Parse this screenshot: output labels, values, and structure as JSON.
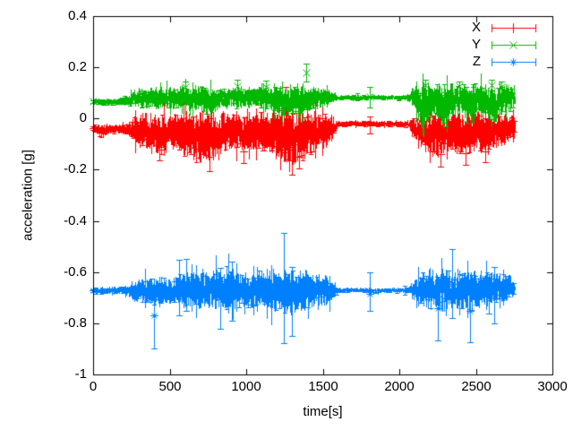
{
  "chart_data": {
    "type": "line",
    "style": "errorbars",
    "title": "",
    "xlabel": "time[s]",
    "ylabel": "acceleration [g]",
    "xlim": [
      0,
      3000
    ],
    "ylim": [
      -1,
      0.4
    ],
    "grid": false,
    "background": "#ffffff",
    "axis_color": "#000000",
    "xticks": [
      0,
      500,
      1000,
      1500,
      2000,
      2500,
      3000
    ],
    "xtick_labels": [
      "0",
      "500",
      "1000",
      "1500",
      "2000",
      "2500",
      "3000"
    ],
    "yticks": [
      0.4,
      0.2,
      0,
      -0.2,
      -0.4,
      -0.6,
      -0.8,
      -1
    ],
    "ytick_labels": [
      "0.4",
      "0.2",
      "0",
      "-0.2",
      "-0.4",
      "-0.6",
      "-0.8",
      "-1"
    ],
    "legend": {
      "position": "top-right"
    },
    "t_range": [
      0,
      2754
    ],
    "series": [
      {
        "name": "X",
        "color": "#ff0000",
        "marker": "plus",
        "envelope": [
          [
            0,
            -0.038,
            0.01
          ],
          [
            60,
            -0.048,
            0.018
          ],
          [
            120,
            -0.041,
            0.011
          ],
          [
            180,
            -0.04,
            0.012
          ],
          [
            225,
            -0.042,
            0.016
          ],
          [
            265,
            -0.05,
            0.034
          ],
          [
            320,
            -0.048,
            0.044
          ],
          [
            380,
            -0.055,
            0.05
          ],
          [
            440,
            -0.06,
            0.054
          ],
          [
            500,
            -0.05,
            0.045
          ],
          [
            560,
            -0.055,
            0.05
          ],
          [
            620,
            -0.065,
            0.058
          ],
          [
            680,
            -0.07,
            0.064
          ],
          [
            740,
            -0.075,
            0.068
          ],
          [
            800,
            -0.07,
            0.064
          ],
          [
            860,
            -0.055,
            0.05
          ],
          [
            920,
            -0.05,
            0.045
          ],
          [
            980,
            -0.055,
            0.05
          ],
          [
            1040,
            -0.05,
            0.047
          ],
          [
            1100,
            -0.055,
            0.052
          ],
          [
            1160,
            -0.06,
            0.057
          ],
          [
            1220,
            -0.07,
            0.068
          ],
          [
            1280,
            -0.075,
            0.074
          ],
          [
            1340,
            -0.07,
            0.068
          ],
          [
            1400,
            -0.06,
            0.056
          ],
          [
            1460,
            -0.05,
            0.047
          ],
          [
            1520,
            -0.047,
            0.043
          ],
          [
            1565,
            -0.038,
            0.026
          ],
          [
            1600,
            -0.022,
            0.008
          ],
          [
            1700,
            -0.02,
            0.007
          ],
          [
            1810,
            -0.021,
            0.007
          ],
          [
            1900,
            -0.022,
            0.007
          ],
          [
            2000,
            -0.021,
            0.007
          ],
          [
            2060,
            -0.023,
            0.009
          ],
          [
            2095,
            -0.038,
            0.032
          ],
          [
            2140,
            -0.05,
            0.048
          ],
          [
            2200,
            -0.055,
            0.054
          ],
          [
            2260,
            -0.06,
            0.058
          ],
          [
            2320,
            -0.05,
            0.05
          ],
          [
            2380,
            -0.055,
            0.054
          ],
          [
            2440,
            -0.06,
            0.058
          ],
          [
            2500,
            -0.05,
            0.051
          ],
          [
            2560,
            -0.055,
            0.054
          ],
          [
            2620,
            -0.05,
            0.047
          ],
          [
            2680,
            -0.042,
            0.04
          ],
          [
            2720,
            -0.036,
            0.036
          ],
          [
            2754,
            -0.03,
            0.028
          ]
        ],
        "spikes": [
          [
            0,
            -0.044,
            -0.032,
            -0.038
          ],
          [
            430,
            -0.165,
            -0.08,
            -0.12
          ],
          [
            760,
            -0.205,
            -0.095,
            -0.15
          ],
          [
            980,
            -0.175,
            -0.085,
            -0.13
          ],
          [
            1255,
            -0.055,
            0.122,
            0.03
          ],
          [
            1300,
            -0.22,
            -0.11,
            -0.165
          ],
          [
            1345,
            -0.195,
            -0.1,
            -0.148
          ],
          [
            1807,
            -0.058,
            0.009,
            -0.024
          ],
          [
            2270,
            -0.188,
            -0.09,
            -0.14
          ],
          [
            2430,
            -0.182,
            -0.088,
            -0.135
          ],
          [
            2560,
            -0.172,
            -0.085,
            -0.13
          ]
        ]
      },
      {
        "name": "Y",
        "color": "#00b800",
        "marker": "cross",
        "envelope": [
          [
            0,
            0.066,
            0.008
          ],
          [
            60,
            0.064,
            0.009
          ],
          [
            120,
            0.066,
            0.008
          ],
          [
            180,
            0.066,
            0.009
          ],
          [
            225,
            0.069,
            0.013
          ],
          [
            265,
            0.08,
            0.022
          ],
          [
            320,
            0.082,
            0.025
          ],
          [
            380,
            0.08,
            0.026
          ],
          [
            440,
            0.078,
            0.028
          ],
          [
            500,
            0.082,
            0.026
          ],
          [
            560,
            0.08,
            0.028
          ],
          [
            620,
            0.078,
            0.03
          ],
          [
            680,
            0.075,
            0.031
          ],
          [
            740,
            0.072,
            0.033
          ],
          [
            800,
            0.075,
            0.031
          ],
          [
            860,
            0.08,
            0.028
          ],
          [
            920,
            0.082,
            0.026
          ],
          [
            980,
            0.08,
            0.028
          ],
          [
            1040,
            0.082,
            0.026
          ],
          [
            1100,
            0.08,
            0.028
          ],
          [
            1160,
            0.075,
            0.031
          ],
          [
            1220,
            0.07,
            0.037
          ],
          [
            1280,
            0.06,
            0.044
          ],
          [
            1340,
            0.065,
            0.041
          ],
          [
            1400,
            0.075,
            0.031
          ],
          [
            1460,
            0.08,
            0.027
          ],
          [
            1520,
            0.082,
            0.025
          ],
          [
            1565,
            0.081,
            0.016
          ],
          [
            1600,
            0.082,
            0.006
          ],
          [
            1700,
            0.081,
            0.006
          ],
          [
            1810,
            0.082,
            0.006
          ],
          [
            1900,
            0.082,
            0.006
          ],
          [
            2000,
            0.081,
            0.006
          ],
          [
            2060,
            0.082,
            0.008
          ],
          [
            2100,
            0.085,
            0.034
          ],
          [
            2145,
            0.045,
            0.056
          ],
          [
            2185,
            0.062,
            0.048
          ],
          [
            2240,
            0.075,
            0.04
          ],
          [
            2290,
            0.04,
            0.058
          ],
          [
            2340,
            0.07,
            0.042
          ],
          [
            2400,
            0.075,
            0.04
          ],
          [
            2455,
            0.045,
            0.056
          ],
          [
            2505,
            0.075,
            0.04
          ],
          [
            2560,
            0.07,
            0.042
          ],
          [
            2620,
            0.045,
            0.054
          ],
          [
            2665,
            0.075,
            0.04
          ],
          [
            2700,
            0.08,
            0.038
          ],
          [
            2754,
            0.078,
            0.03
          ]
        ],
        "spikes": [
          [
            0,
            0.06,
            0.072,
            0.066
          ],
          [
            600,
            0.098,
            0.146,
            0.122
          ],
          [
            940,
            0.1,
            0.152,
            0.126
          ],
          [
            1130,
            0.1,
            0.147,
            0.123
          ],
          [
            1390,
            0.146,
            0.214,
            0.18
          ],
          [
            1807,
            0.043,
            0.125,
            0.084
          ],
          [
            2170,
            0.108,
            0.15,
            0.129
          ],
          [
            2390,
            0.107,
            0.146,
            0.126
          ],
          [
            2600,
            0.108,
            0.152,
            0.13
          ],
          [
            2667,
            0.1,
            0.146,
            0.123
          ]
        ]
      },
      {
        "name": "Z",
        "color": "#0080ff",
        "marker": "star",
        "envelope": [
          [
            0,
            -0.672,
            0.008
          ],
          [
            60,
            -0.673,
            0.009
          ],
          [
            120,
            -0.672,
            0.008
          ],
          [
            180,
            -0.672,
            0.01
          ],
          [
            225,
            -0.673,
            0.015
          ],
          [
            265,
            -0.675,
            0.028
          ],
          [
            320,
            -0.673,
            0.032
          ],
          [
            380,
            -0.675,
            0.035
          ],
          [
            440,
            -0.673,
            0.038
          ],
          [
            500,
            -0.675,
            0.04
          ],
          [
            560,
            -0.672,
            0.042
          ],
          [
            620,
            -0.67,
            0.044
          ],
          [
            680,
            -0.668,
            0.047
          ],
          [
            740,
            -0.665,
            0.05
          ],
          [
            800,
            -0.663,
            0.052
          ],
          [
            860,
            -0.665,
            0.05
          ],
          [
            920,
            -0.668,
            0.048
          ],
          [
            980,
            -0.67,
            0.046
          ],
          [
            1040,
            -0.672,
            0.047
          ],
          [
            1100,
            -0.67,
            0.05
          ],
          [
            1160,
            -0.672,
            0.052
          ],
          [
            1220,
            -0.675,
            0.057
          ],
          [
            1280,
            -0.678,
            0.055
          ],
          [
            1340,
            -0.675,
            0.052
          ],
          [
            1400,
            -0.672,
            0.048
          ],
          [
            1460,
            -0.67,
            0.044
          ],
          [
            1520,
            -0.67,
            0.038
          ],
          [
            1565,
            -0.671,
            0.022
          ],
          [
            1600,
            -0.672,
            0.007
          ],
          [
            1700,
            -0.671,
            0.006
          ],
          [
            1810,
            -0.672,
            0.006
          ],
          [
            1900,
            -0.672,
            0.006
          ],
          [
            2000,
            -0.671,
            0.006
          ],
          [
            2060,
            -0.672,
            0.009
          ],
          [
            2095,
            -0.672,
            0.026
          ],
          [
            2140,
            -0.67,
            0.044
          ],
          [
            2200,
            -0.668,
            0.05
          ],
          [
            2260,
            -0.67,
            0.052
          ],
          [
            2320,
            -0.668,
            0.048
          ],
          [
            2380,
            -0.665,
            0.05
          ],
          [
            2440,
            -0.668,
            0.052
          ],
          [
            2500,
            -0.67,
            0.048
          ],
          [
            2560,
            -0.668,
            0.046
          ],
          [
            2620,
            -0.67,
            0.044
          ],
          [
            2680,
            -0.668,
            0.04
          ],
          [
            2720,
            -0.663,
            0.032
          ],
          [
            2754,
            -0.658,
            0.018
          ]
        ],
        "spikes": [
          [
            0,
            -0.678,
            -0.666,
            -0.672
          ],
          [
            398,
            -0.9,
            -0.655,
            -0.77
          ],
          [
            560,
            -0.77,
            -0.552,
            -0.66
          ],
          [
            610,
            -0.75,
            -0.548,
            -0.65
          ],
          [
            830,
            -0.82,
            -0.585,
            -0.7
          ],
          [
            905,
            -0.79,
            -0.56,
            -0.67
          ],
          [
            1245,
            -0.877,
            -0.447,
            -0.66
          ],
          [
            1300,
            -0.85,
            -0.58,
            -0.71
          ],
          [
            1807,
            -0.75,
            -0.602,
            -0.685
          ],
          [
            2250,
            -0.868,
            -0.62,
            -0.74
          ],
          [
            2345,
            -0.78,
            -0.51,
            -0.645
          ],
          [
            2460,
            -0.875,
            -0.628,
            -0.75
          ],
          [
            2585,
            -0.762,
            -0.62,
            -0.69
          ],
          [
            2620,
            -0.8,
            -0.58,
            -0.69
          ]
        ]
      }
    ]
  }
}
